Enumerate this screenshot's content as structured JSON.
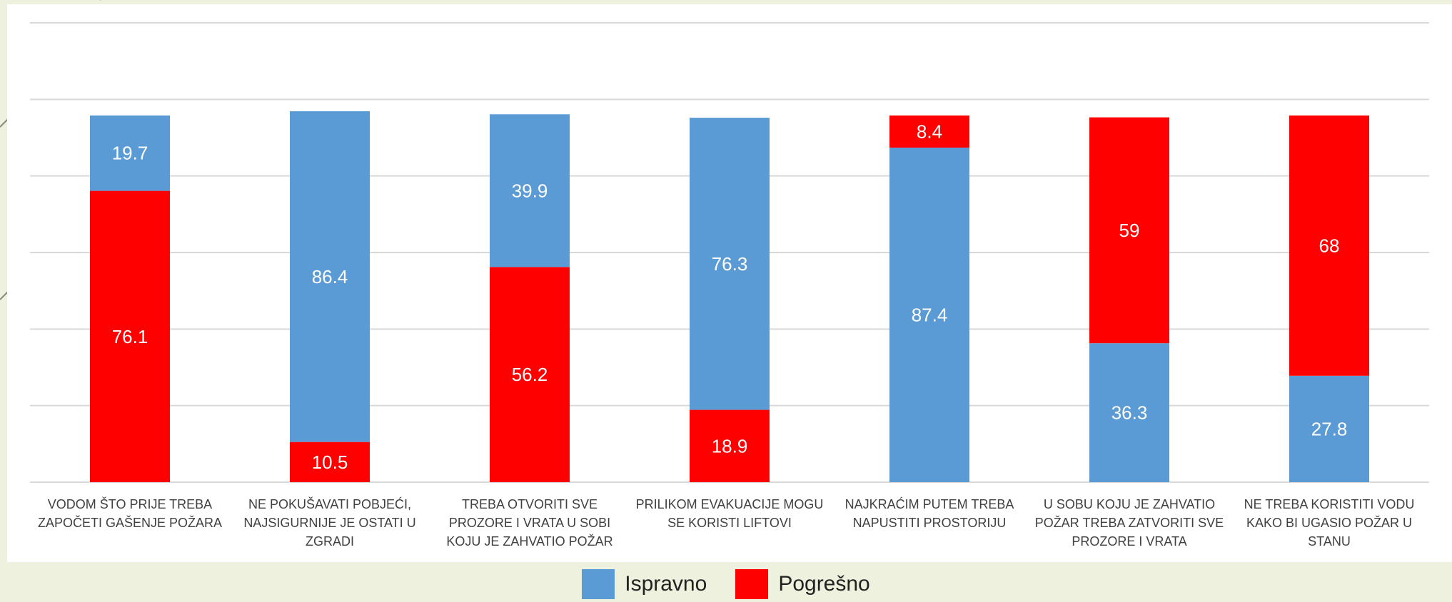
{
  "chart_data": {
    "type": "bar",
    "stacked": true,
    "categories": [
      "VODOM ŠTO PRIJE TREBA ZAPOČETI GAŠENJE POŽARA",
      "NE POKUŠAVATI POBJEĆI, NAJSIGURNIJE JE OSTATI U ZGRADI",
      "TREBA OTVORITI SVE PROZORE I VRATA U SOBI KOJU JE ZAHVATIO POŽAR",
      "PRILIKOM EVAKUACIJE MOGU SE KORISTI LIFTOVI",
      "NAJKRAĆIM PUTEM TREBA NAPUSTITI PROSTORIJU",
      "U SOBU KOJU JE ZAHVATIO POŽAR TREBA ZATVORITI SVE PROZORE I VRATA",
      "NE TREBA KORISTITI VODU KAKO BI UGASIO POŽAR U STANU"
    ],
    "series": [
      {
        "name": "Ispravno",
        "color": "#5b9bd5",
        "values": [
          19.7,
          86.4,
          39.9,
          76.3,
          87.4,
          36.3,
          27.8
        ]
      },
      {
        "name": "Pogrešno",
        "color": "#ff0000",
        "values": [
          76.1,
          10.5,
          56.2,
          18.9,
          8.4,
          59,
          68
        ]
      }
    ],
    "stack_order_bottom_first": [
      [
        "Pogrešno",
        "Ispravno"
      ],
      [
        "Pogrešno",
        "Ispravno"
      ],
      [
        "Pogrešno",
        "Ispravno"
      ],
      [
        "Pogrešno",
        "Ispravno"
      ],
      [
        "Ispravno",
        "Pogrešno"
      ],
      [
        "Ispravno",
        "Pogrešno"
      ],
      [
        "Ispravno",
        "Pogrešno"
      ]
    ],
    "ylim": [
      0,
      120
    ],
    "y_gridlines": [
      0,
      20,
      40,
      60,
      80,
      100,
      120
    ],
    "grid": true,
    "show_y_tick_labels": false,
    "legend_position": "bottom",
    "title": "",
    "xlabel": "",
    "ylabel": ""
  }
}
